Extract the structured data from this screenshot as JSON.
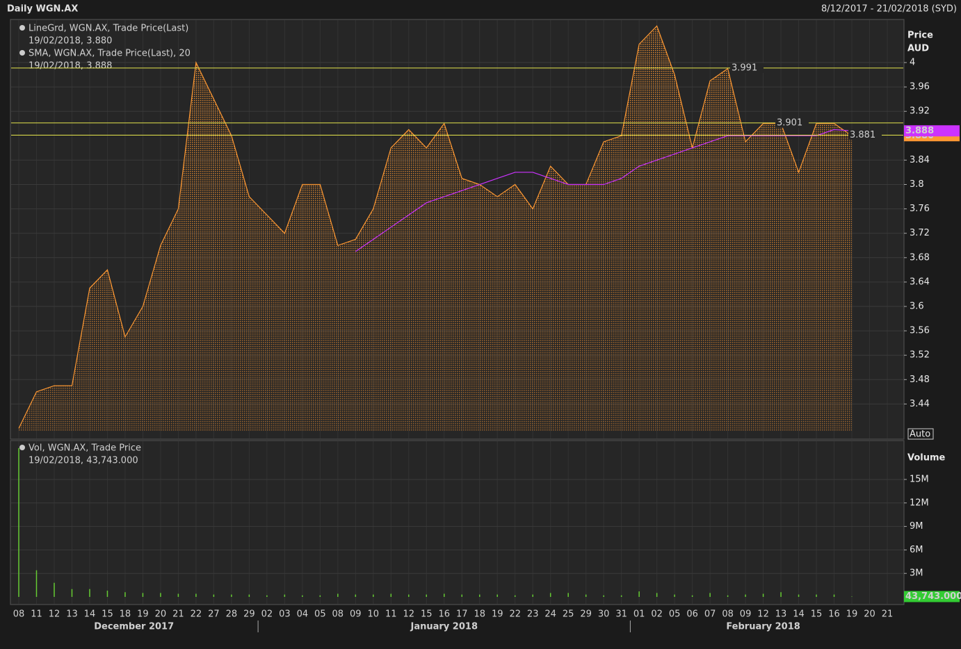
{
  "header": {
    "title": "Daily WGN.AX",
    "range": "8/12/2017 - 21/02/2018 (SYD)"
  },
  "chart_data": [
    {
      "type": "line",
      "axis_title": "Price",
      "axis_unit": "AUD",
      "scale_mode": "Auto",
      "categories": [
        "08",
        "11",
        "12",
        "13",
        "14",
        "15",
        "18",
        "19",
        "20",
        "21",
        "22",
        "27",
        "28",
        "29",
        "02",
        "03",
        "04",
        "05",
        "08",
        "09",
        "10",
        "11",
        "12",
        "15",
        "16",
        "17",
        "18",
        "19",
        "22",
        "23",
        "24",
        "25",
        "29",
        "30",
        "31",
        "01",
        "02",
        "05",
        "06",
        "07",
        "08",
        "09",
        "12",
        "13",
        "14",
        "15",
        "16",
        "19",
        "20",
        "21"
      ],
      "months": [
        "December 2017",
        "January 2018",
        "February 2018"
      ],
      "ylim": [
        3.396,
        4.07
      ],
      "yticks": [
        3.44,
        3.48,
        3.52,
        3.56,
        3.6,
        3.64,
        3.68,
        3.72,
        3.76,
        3.8,
        3.84,
        3.92,
        3.96,
        4
      ],
      "hlines": [
        3.991,
        3.901,
        3.881
      ],
      "grid": true,
      "series": [
        {
          "name": "LineGrd, WGN.AX, Trade Price(Last)",
          "legend_detail": "19/02/2018, 3.880",
          "color": "#ff9933",
          "fill": "dots",
          "last_label": "3.880",
          "values": [
            3.4,
            3.46,
            3.47,
            3.47,
            3.63,
            3.66,
            3.55,
            3.6,
            3.7,
            3.76,
            4.0,
            3.94,
            3.88,
            3.78,
            3.75,
            3.72,
            3.8,
            3.8,
            3.7,
            3.71,
            3.76,
            3.86,
            3.89,
            3.86,
            3.9,
            3.81,
            3.8,
            3.78,
            3.8,
            3.76,
            3.83,
            3.8,
            3.8,
            3.87,
            3.88,
            4.03,
            4.06,
            3.98,
            3.86,
            3.97,
            3.99,
            3.87,
            3.9,
            3.9,
            3.82,
            3.9,
            3.9,
            3.88,
            null,
            null
          ]
        },
        {
          "name": "SMA, WGN.AX, Trade Price(Last),  20",
          "legend_detail": "19/02/2018, 3.888",
          "color": "#cc33ff",
          "last_label": "3.888",
          "values": [
            null,
            null,
            null,
            null,
            null,
            null,
            null,
            null,
            null,
            null,
            null,
            null,
            null,
            null,
            null,
            null,
            null,
            null,
            null,
            3.69,
            3.71,
            3.73,
            3.75,
            3.77,
            3.78,
            3.79,
            3.8,
            3.81,
            3.82,
            3.82,
            3.81,
            3.8,
            3.8,
            3.8,
            3.81,
            3.83,
            3.84,
            3.85,
            3.86,
            3.87,
            3.88,
            3.88,
            3.88,
            3.88,
            3.88,
            3.88,
            3.89,
            3.888,
            null,
            null
          ]
        }
      ]
    },
    {
      "type": "bar",
      "axis_title": "Volume",
      "ylim": [
        0,
        19400000
      ],
      "yticks": [
        {
          "value": 3000000,
          "label": "3M"
        },
        {
          "value": 6000000,
          "label": "6M"
        },
        {
          "value": 9000000,
          "label": "9M"
        },
        {
          "value": 12000000,
          "label": "12M"
        },
        {
          "value": 15000000,
          "label": "15M"
        }
      ],
      "grid": true,
      "series": [
        {
          "name": "Vol, WGN.AX, Trade Price",
          "legend_detail": "19/02/2018, 43,743.000",
          "color": "#66cc33",
          "last_label": "43,743.000",
          "values": [
            19000000,
            3400000,
            1800000,
            1000000,
            1000000,
            800000,
            600000,
            500000,
            500000,
            400000,
            400000,
            300000,
            300000,
            300000,
            200000,
            300000,
            200000,
            200000,
            400000,
            300000,
            300000,
            400000,
            300000,
            300000,
            400000,
            300000,
            300000,
            300000,
            200000,
            300000,
            500000,
            500000,
            300000,
            200000,
            200000,
            700000,
            500000,
            300000,
            200000,
            500000,
            200000,
            300000,
            400000,
            600000,
            300000,
            300000,
            300000,
            43743,
            null,
            null
          ]
        }
      ]
    }
  ]
}
